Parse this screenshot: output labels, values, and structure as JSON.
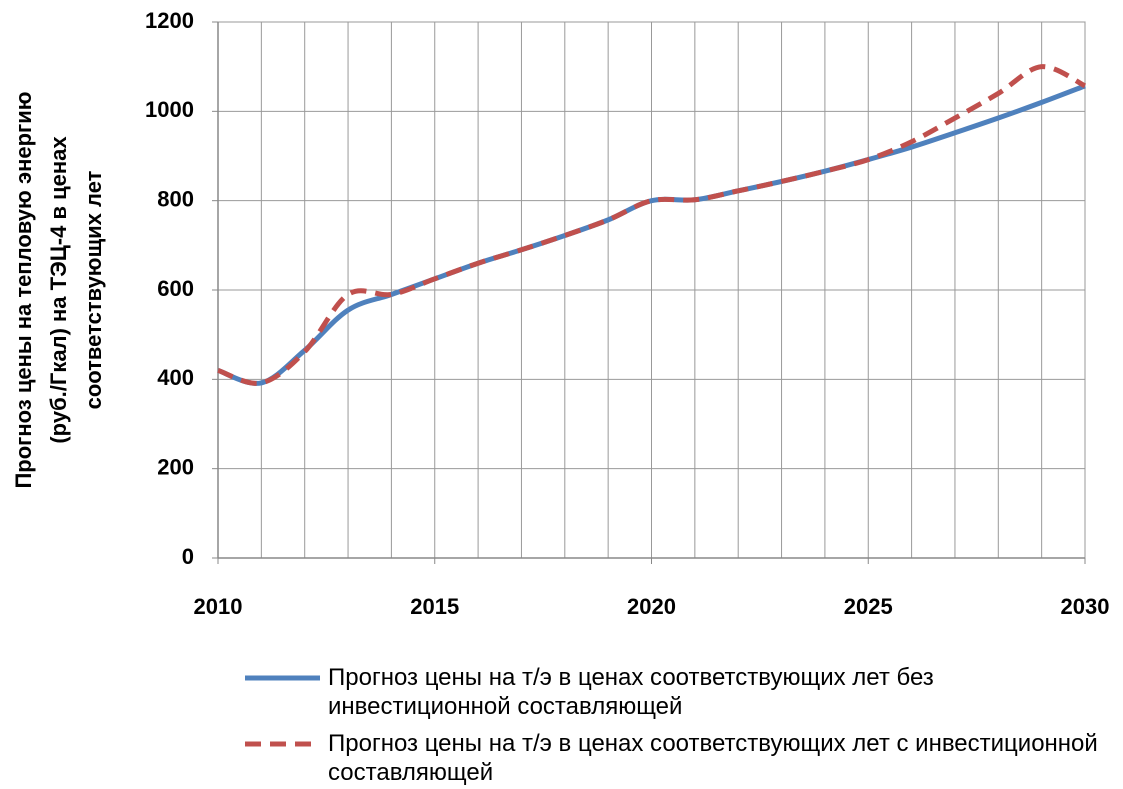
{
  "chart_data": {
    "type": "line",
    "ylabel": [
      "Прогноз цены на тепловую  энергию",
      "(руб./Гкал) на ТЭЦ-4 в ценах",
      "соответствующих  лет"
    ],
    "x": [
      2010,
      2011,
      2012,
      2013,
      2014,
      2015,
      2016,
      2017,
      2018,
      2019,
      2020,
      2021,
      2022,
      2023,
      2024,
      2025,
      2026,
      2027,
      2028,
      2029,
      2030
    ],
    "series": [
      {
        "name": "Прогноз цены на т/э в ценах соответствующих лет без инвестиционной составляющей",
        "color": "#4f81bd",
        "dashed": false,
        "values": [
          420,
          392,
          465,
          555,
          590,
          625,
          660,
          690,
          722,
          757,
          800,
          802,
          822,
          843,
          866,
          892,
          920,
          952,
          985,
          1020,
          1057
        ]
      },
      {
        "name": "Прогноз цены на т/э в ценах соответствующих лет с инвестиционной составляющей",
        "color": "#c0504d",
        "dashed": true,
        "values": [
          420,
          392,
          462,
          590,
          590,
          625,
          660,
          690,
          722,
          757,
          800,
          802,
          822,
          843,
          866,
          892,
          932,
          985,
          1040,
          1100,
          1057
        ]
      }
    ],
    "xlim": [
      2010,
      2030
    ],
    "xticks": [
      2010,
      2015,
      2020,
      2025,
      2030
    ],
    "ylim": [
      0,
      1200
    ],
    "yticks": [
      0,
      200,
      400,
      600,
      800,
      1000,
      1200
    ],
    "grid": true
  }
}
